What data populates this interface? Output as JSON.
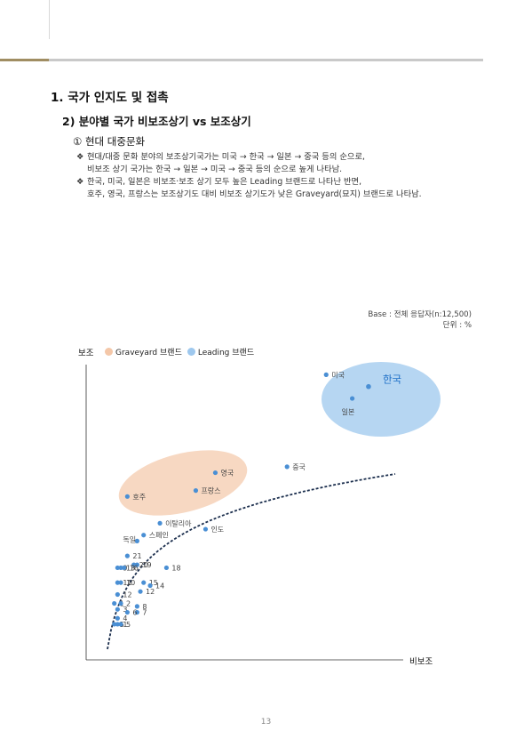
{
  "section_title": "1. 국가 인지도 및 접촉",
  "subsection_title": "2) 분야별 국가 비보조상기 vs 보조상기",
  "subsubsection_title": "① 현대 대중문화",
  "bullet_mark": "❖",
  "bullets": [
    {
      "line1": "현대/대중 문화 분야의 보조상기국가는 미국 → 한국 → 일본 → 중국 등의 순으로,",
      "line2": "비보조 상기 국가는 한국 → 일본 → 미국 → 중국 등의 순으로  높게 나타남."
    },
    {
      "line1": "한국, 미국, 일본은 비보조·보조 상기 모두 높은 Leading 브랜드로 나타난 반면,",
      "line2": "호주, 영국, 프랑스는 보조상기도 대비 비보조 상기도가 낮은 Graveyard(묘지) 브랜드로 나타남."
    }
  ],
  "base_note": "Base : 전체 응답자(n:12,500)",
  "unit_note": "단위 : %",
  "page_number": "13",
  "colors": {
    "accent_gold": "#a08d62",
    "point": "#4a8fd4",
    "graveyard": "#f4c7a8",
    "leading": "#9ec8ee",
    "korea_label": "#1e6fc7"
  },
  "chart_data": {
    "type": "scatter",
    "ylabel": "보조",
    "xlabel": "비보조",
    "legend": [
      {
        "name": "Graveyard 브랜드",
        "color": "#f4c7a8"
      },
      {
        "name": "Leading 브랜드",
        "color": "#9ec8ee"
      }
    ],
    "legend_position": "top-left",
    "grid": false,
    "xlim": [
      0,
      100
    ],
    "ylim": [
      0,
      100
    ],
    "trendline": "logarithmic",
    "points": [
      {
        "label": "한국",
        "x": 85,
        "y": 92,
        "highlight": true
      },
      {
        "label": "미국",
        "x": 72,
        "y": 96
      },
      {
        "label": "일본",
        "x": 80,
        "y": 88
      },
      {
        "label": "중국",
        "x": 60,
        "y": 65
      },
      {
        "label": "영국",
        "x": 38,
        "y": 63
      },
      {
        "label": "프랑스",
        "x": 32,
        "y": 57
      },
      {
        "label": "호주",
        "x": 11,
        "y": 55
      },
      {
        "label": "이탈리아",
        "x": 21,
        "y": 46
      },
      {
        "label": "인도",
        "x": 35,
        "y": 44
      },
      {
        "label": "스페인",
        "x": 16,
        "y": 42
      },
      {
        "label": "독일",
        "x": 14,
        "y": 40
      },
      {
        "label": "21",
        "x": 11,
        "y": 35
      },
      {
        "label": "19",
        "x": 14,
        "y": 32
      },
      {
        "label": "20",
        "x": 13,
        "y": 32
      },
      {
        "label": "18",
        "x": 23,
        "y": 31
      },
      {
        "label": "9",
        "x": 8,
        "y": 31
      },
      {
        "label": "16",
        "x": 10,
        "y": 31
      },
      {
        "label": "13",
        "x": 9,
        "y": 31
      },
      {
        "label": "11",
        "x": 8,
        "y": 26
      },
      {
        "label": "10",
        "x": 9,
        "y": 26
      },
      {
        "label": "15",
        "x": 16,
        "y": 26
      },
      {
        "label": "14",
        "x": 18,
        "y": 25
      },
      {
        "label": "12",
        "x": 15,
        "y": 23
      },
      {
        "label": "12",
        "x": 8,
        "y": 22
      },
      {
        "label": "1",
        "x": 7,
        "y": 19
      },
      {
        "label": "2",
        "x": 9,
        "y": 19
      },
      {
        "label": "8",
        "x": 14,
        "y": 18
      },
      {
        "label": "7",
        "x": 14,
        "y": 16
      },
      {
        "label": "3",
        "x": 8,
        "y": 17
      },
      {
        "label": "4",
        "x": 8,
        "y": 14
      },
      {
        "label": "6",
        "x": 11,
        "y": 16
      },
      {
        "label": "5",
        "x": 7,
        "y": 12
      },
      {
        "label": "1",
        "x": 8,
        "y": 12
      },
      {
        "label": "5",
        "x": 9,
        "y": 12
      }
    ]
  }
}
